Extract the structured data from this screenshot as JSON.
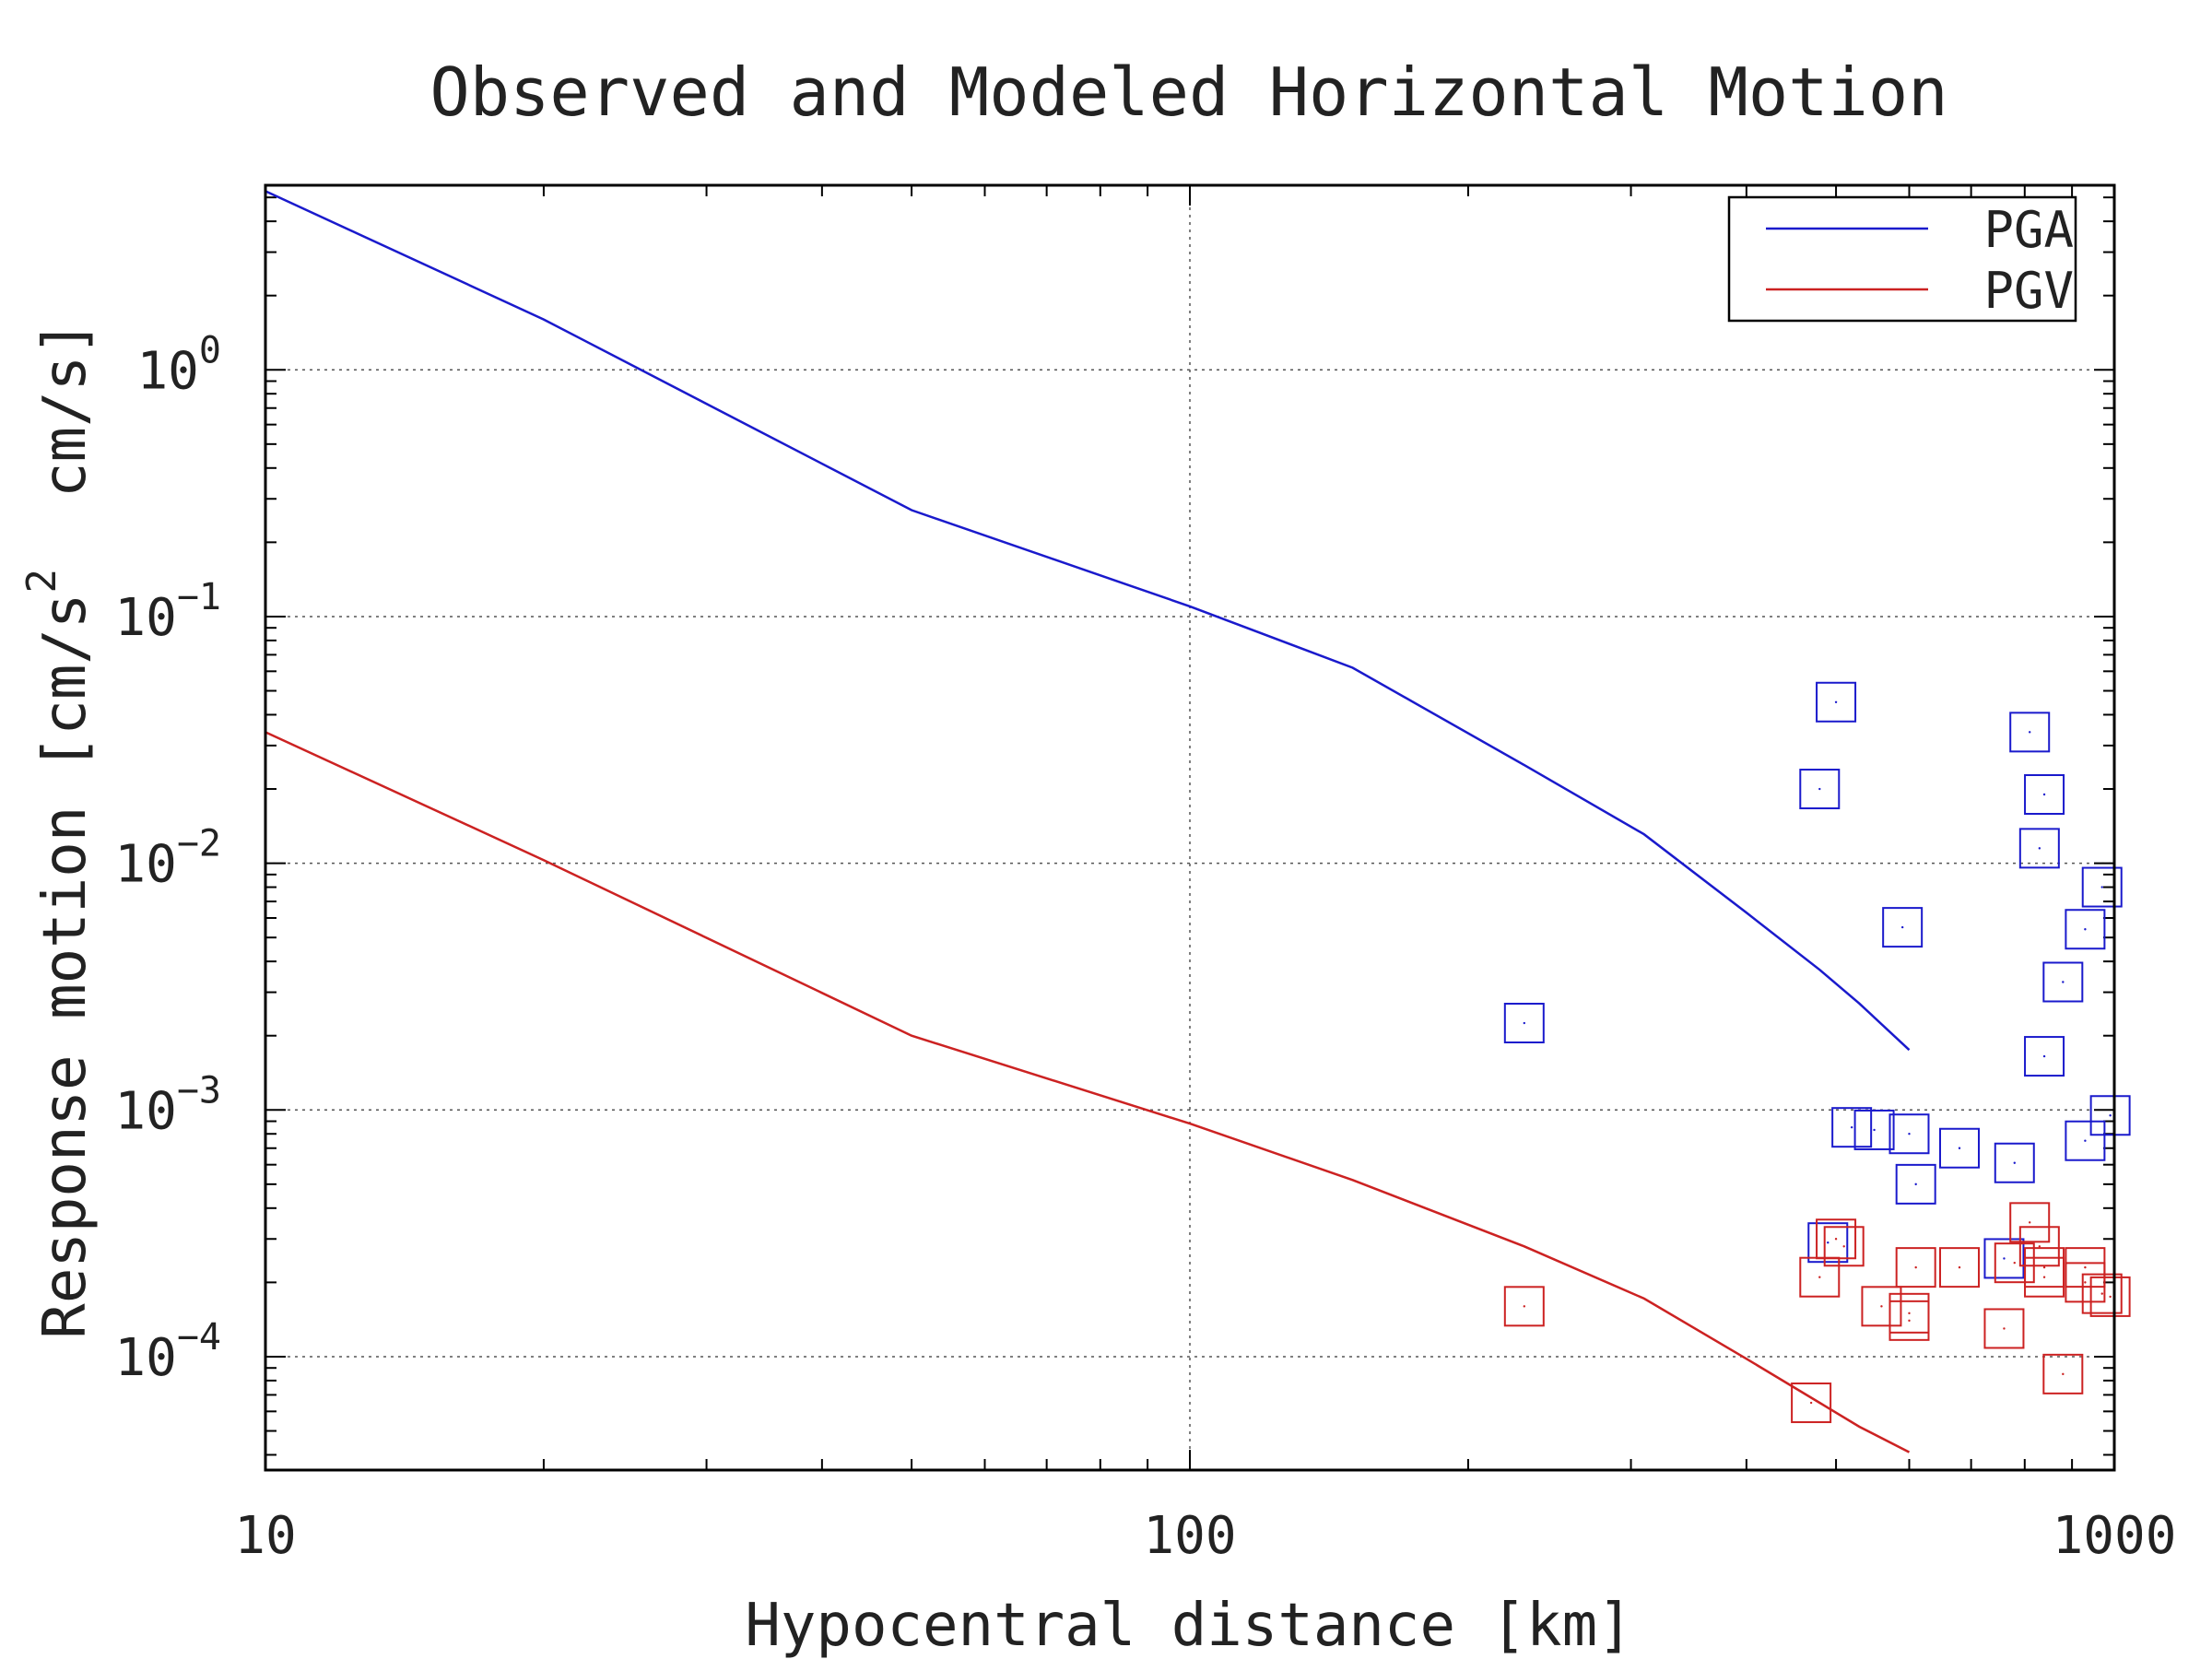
{
  "chart_data": {
    "type": "scatter",
    "title": "Observed and Modeled Horizontal Motion",
    "xlabel": "Hypocentral distance [km]",
    "ylabel": {
      "main": "Response motion [cm/s",
      "sup": "2",
      "tail": "  cm/s]"
    },
    "x_scale": "log",
    "y_scale": "log",
    "xlim": [
      10,
      1000
    ],
    "ylim": [
      3.47e-05,
      5.6
    ],
    "grid": true,
    "legend_position": "top-right",
    "x_ticks": [
      {
        "value": 10,
        "label": "10"
      },
      {
        "value": 100,
        "label": "100"
      },
      {
        "value": 1000,
        "label": "1000"
      }
    ],
    "y_ticks": [
      {
        "value": 1,
        "base": "10",
        "exp": "0"
      },
      {
        "value": 0.1,
        "base": "10",
        "exp": "−1"
      },
      {
        "value": 0.01,
        "base": "10",
        "exp": "−2"
      },
      {
        "value": 0.001,
        "base": "10",
        "exp": "−3"
      },
      {
        "value": 0.0001,
        "base": "10",
        "exp": "−4"
      }
    ],
    "series": [
      {
        "name": "PGA",
        "color": "#1a1acc",
        "line": [
          [
            10,
            5.3
          ],
          [
            20,
            1.6
          ],
          [
            50,
            0.27
          ],
          [
            100,
            0.11
          ],
          [
            150,
            0.062
          ],
          [
            230,
            0.025
          ],
          [
            310,
            0.0131
          ],
          [
            400,
            0.0063
          ],
          [
            480,
            0.0037
          ],
          [
            530,
            0.0027
          ],
          [
            600,
            0.00175
          ]
        ],
        "observed": [
          [
            230,
            0.00225
          ],
          [
            480,
            0.02
          ],
          [
            500,
            0.045
          ],
          [
            520,
            0.00085
          ],
          [
            550,
            0.00083
          ],
          [
            590,
            0.0055
          ],
          [
            600,
            0.0008
          ],
          [
            610,
            0.0005
          ],
          [
            490,
            0.00029
          ],
          [
            680,
            0.0007
          ],
          [
            760,
            0.00025
          ],
          [
            780,
            0.00061
          ],
          [
            810,
            0.034
          ],
          [
            830,
            0.0115
          ],
          [
            840,
            0.019
          ],
          [
            840,
            0.00165
          ],
          [
            880,
            0.0033
          ],
          [
            930,
            0.0054
          ],
          [
            930,
            0.00075
          ],
          [
            970,
            0.008
          ],
          [
            990,
            0.00095
          ]
        ]
      },
      {
        "name": "PGV",
        "color": "#cc2222",
        "line": [
          [
            10,
            0.034
          ],
          [
            20,
            0.0103
          ],
          [
            50,
            0.002
          ],
          [
            100,
            0.00088
          ],
          [
            150,
            0.00052
          ],
          [
            230,
            0.00028
          ],
          [
            310,
            0.000172
          ],
          [
            400,
            9.8e-05
          ],
          [
            480,
            6.5e-05
          ],
          [
            530,
            5.2e-05
          ],
          [
            600,
            4.1e-05
          ]
        ],
        "observed": [
          [
            230,
            0.00016
          ],
          [
            470,
            6.5e-05
          ],
          [
            480,
            0.00021
          ],
          [
            500,
            0.0003
          ],
          [
            510,
            0.00028
          ],
          [
            560,
            0.00016
          ],
          [
            600,
            0.00014
          ],
          [
            600,
            0.00015
          ],
          [
            610,
            0.00023
          ],
          [
            680,
            0.00023
          ],
          [
            760,
            0.00013
          ],
          [
            780,
            0.00024
          ],
          [
            810,
            0.00035
          ],
          [
            830,
            0.00028
          ],
          [
            840,
            0.00023
          ],
          [
            840,
            0.00021
          ],
          [
            880,
            8.5e-05
          ],
          [
            930,
            0.00023
          ],
          [
            930,
            0.0002
          ],
          [
            970,
            0.00018
          ],
          [
            990,
            0.000175
          ]
        ]
      }
    ]
  }
}
